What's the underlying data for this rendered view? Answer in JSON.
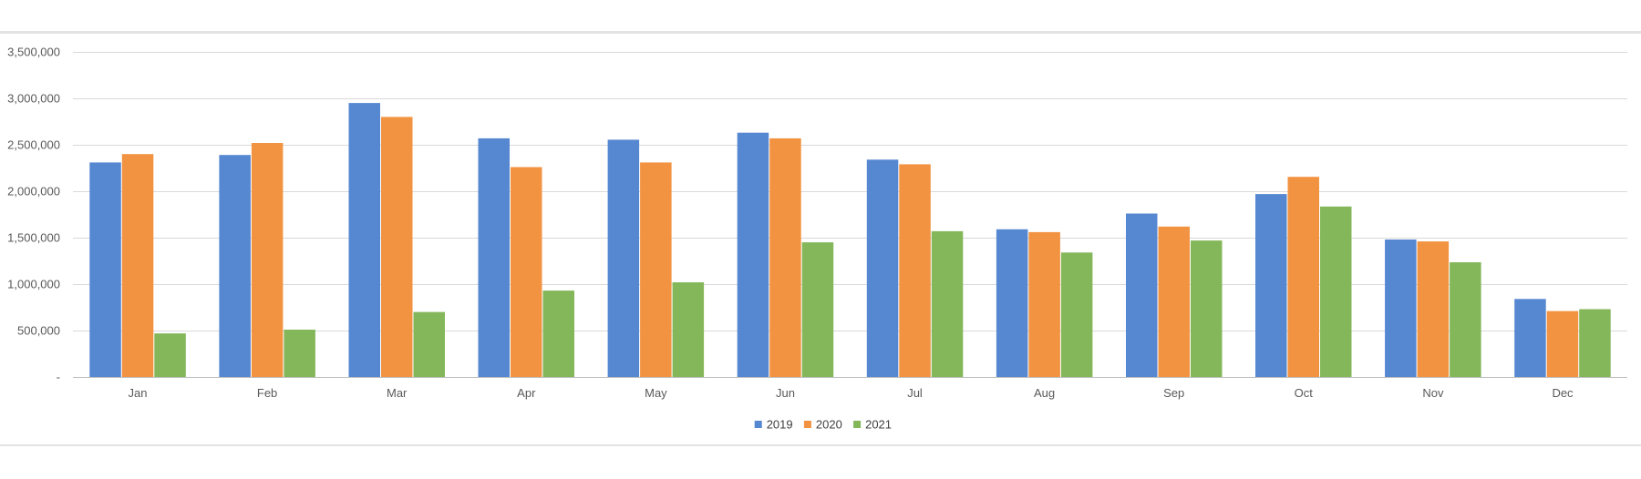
{
  "chart_data": {
    "type": "bar",
    "categories": [
      "Jan",
      "Feb",
      "Mar",
      "Apr",
      "May",
      "Jun",
      "Jul",
      "Aug",
      "Sep",
      "Oct",
      "Nov",
      "Dec"
    ],
    "series": [
      {
        "name": "2019",
        "color": "#5687d1",
        "values": [
          2310000,
          2390000,
          2950000,
          2570000,
          2555000,
          2630000,
          2340000,
          1590000,
          1760000,
          1970000,
          1480000,
          840000
        ]
      },
      {
        "name": "2020",
        "color": "#f29342",
        "values": [
          2400000,
          2520000,
          2800000,
          2260000,
          2310000,
          2570000,
          2290000,
          1560000,
          1620000,
          2155000,
          1460000,
          710000
        ]
      },
      {
        "name": "2021",
        "color": "#84b75a",
        "values": [
          470000,
          510000,
          700000,
          930000,
          1020000,
          1450000,
          1570000,
          1340000,
          1470000,
          1835000,
          1235000,
          730000
        ]
      }
    ],
    "yticks": [
      0,
      500000,
      1000000,
      1500000,
      2000000,
      2500000,
      3000000,
      3500000
    ],
    "ytick_labels": [
      "-",
      "500,000",
      "1,000,000",
      "1,500,000",
      "2,000,000",
      "2,500,000",
      "3,000,000",
      "3,500,000"
    ],
    "ylim": [
      0,
      3500000
    ],
    "title": "",
    "xlabel": "",
    "ylabel": "",
    "grid": true,
    "legend_position": "bottom"
  }
}
